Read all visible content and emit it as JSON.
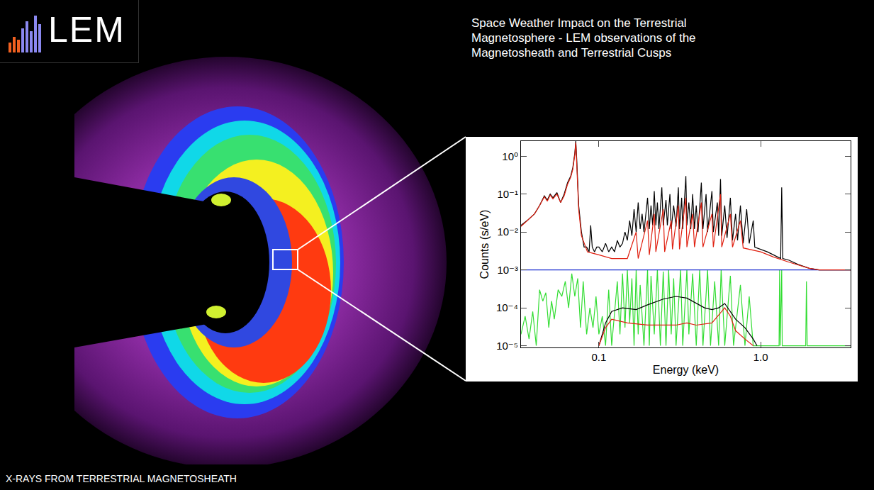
{
  "header": {
    "logo": "LEM",
    "title": "Space Weather Impact on the Terrestrial Magnetosphere - LEM observations of the Magnetosheath and Terrestrial Cusps"
  },
  "caption": "X-RAYS FROM TERRESTRIAL MAGNETOSHEATH",
  "chart_data": {
    "type": "line",
    "xlabel": "Energy (keV)",
    "ylabel": "Counts (s/eV)",
    "log": true,
    "grid": false,
    "xlim": [
      0.033,
      3.6
    ],
    "ylim": [
      9e-06,
      2.5
    ],
    "xticks": [
      0.1,
      {
        "value": 1,
        "label": "1.0"
      }
    ],
    "yticks": [
      {
        "value": 1,
        "label": "10⁰"
      },
      {
        "value": 0.1,
        "label": "10⁻¹"
      },
      {
        "value": 0.01,
        "label": "10⁻²"
      },
      {
        "value": 0.001,
        "label": "10⁻³"
      },
      {
        "value": 0.0001,
        "label": "10⁻⁴"
      },
      {
        "value": 1e-05,
        "label": "10⁻⁵"
      }
    ],
    "series": [
      {
        "color": "#33dd33",
        "x": [
          0.033,
          0.035,
          0.037,
          0.039,
          0.041,
          0.043,
          0.045,
          0.047,
          0.049,
          0.051,
          0.053,
          0.056,
          0.059,
          0.062,
          0.065,
          0.068,
          0.071,
          0.074,
          0.077,
          0.08,
          0.084,
          0.088,
          0.092,
          0.096,
          0.1,
          0.105,
          0.11,
          0.115,
          0.12,
          0.13,
          0.135,
          0.14,
          0.145,
          0.15,
          0.155,
          0.16,
          0.165,
          0.17,
          0.175,
          0.18,
          0.19,
          0.2,
          0.205,
          0.21,
          0.22,
          0.23,
          0.24,
          0.25,
          0.26,
          0.27,
          0.28,
          0.29,
          0.3,
          0.32,
          0.33,
          0.35,
          0.36,
          0.38,
          0.4,
          0.42,
          0.44,
          0.47,
          0.49,
          0.52,
          0.55,
          0.57,
          0.6,
          0.65,
          0.68,
          0.75,
          0.8,
          0.85,
          0.9,
          1.3,
          1.31,
          1.32,
          1.35,
          1.36,
          1.9,
          1.92,
          1.94,
          3.6
        ],
        "values": [
          2e-05,
          6e-05,
          1.5e-05,
          8e-05,
          1e-05,
          0.0003,
          0.00015,
          0.00025,
          3e-05,
          0.00015,
          5e-05,
          0.0003,
          0.0002,
          0.0005,
          0.0001,
          0.0008,
          0.0002,
          0.0006,
          3e-05,
          0.0005,
          2e-05,
          0.0001,
          3e-05,
          0.0002,
          2e-05,
          6e-05,
          1e-05,
          0.0003,
          1e-05,
          0.0005,
          2e-05,
          0.0008,
          3e-05,
          0.001,
          4e-05,
          0.0006,
          1e-05,
          0.001,
          2e-05,
          0.0004,
          1e-05,
          0.001,
          1e-05,
          0.0007,
          2e-05,
          0.001,
          1e-05,
          0.0009,
          1e-05,
          0.001,
          2e-05,
          0.0006,
          1e-05,
          0.001,
          1e-05,
          0.001,
          2e-05,
          0.0008,
          1e-05,
          0.001,
          1e-05,
          0.001,
          1e-05,
          0.0005,
          1e-05,
          0.001,
          1e-05,
          0.0007,
          1e-05,
          0.0004,
          1e-05,
          0.0002,
          1e-05,
          1e-05,
          0.001,
          1e-05,
          0.001,
          1e-05,
          1e-05,
          0.0005,
          1e-05,
          1e-05
        ]
      },
      {
        "color": "#1a2ccf",
        "x": [
          0.033,
          3.6
        ],
        "values": [
          0.001,
          0.001
        ]
      },
      {
        "color": "#000000",
        "x": [
          0.1,
          0.11,
          0.12,
          0.14,
          0.17,
          0.2,
          0.25,
          0.3,
          0.35,
          0.4,
          0.45,
          0.5,
          0.55,
          0.6,
          0.65,
          0.7,
          0.8,
          0.9,
          0.95
        ],
        "values": [
          1e-05,
          4e-05,
          8e-05,
          0.0001,
          9e-05,
          0.00012,
          0.00017,
          0.0002,
          0.00018,
          0.00013,
          0.0001,
          9e-05,
          0.0001,
          0.00013,
          8e-05,
          5e-05,
          3e-05,
          1.5e-05,
          1e-05
        ]
      },
      {
        "color": "#e02010",
        "x": [
          0.1,
          0.11,
          0.12,
          0.15,
          0.2,
          0.3,
          0.35,
          0.4,
          0.5,
          0.6,
          0.65,
          0.7,
          0.8,
          0.9
        ],
        "values": [
          1e-05,
          3e-05,
          5e-05,
          4e-05,
          3.5e-05,
          3.5e-05,
          4e-05,
          3.5e-05,
          4e-05,
          0.0001,
          6e-05,
          2.5e-05,
          1.5e-05,
          1e-05
        ]
      },
      {
        "color": "#000000",
        "x": [
          0.033,
          0.036,
          0.04,
          0.043,
          0.046,
          0.048,
          0.05,
          0.052,
          0.055,
          0.058,
          0.061,
          0.064,
          0.067,
          0.069,
          0.071,
          0.072,
          0.073,
          0.075,
          0.078,
          0.081,
          0.084,
          0.087,
          0.089,
          0.091,
          0.094,
          0.097,
          0.1,
          0.105,
          0.11,
          0.115,
          0.12,
          0.125,
          0.13,
          0.135,
          0.14,
          0.145,
          0.15,
          0.155,
          0.16,
          0.165,
          0.17,
          0.175,
          0.18,
          0.185,
          0.19,
          0.2,
          0.205,
          0.21,
          0.215,
          0.22,
          0.225,
          0.23,
          0.235,
          0.245,
          0.25,
          0.26,
          0.265,
          0.275,
          0.28,
          0.29,
          0.3,
          0.31,
          0.315,
          0.325,
          0.33,
          0.345,
          0.35,
          0.36,
          0.37,
          0.38,
          0.39,
          0.4,
          0.41,
          0.43,
          0.44,
          0.46,
          0.47,
          0.5,
          0.51,
          0.54,
          0.55,
          0.565,
          0.575,
          0.6,
          0.62,
          0.65,
          0.67,
          0.7,
          0.72,
          0.75,
          0.78,
          0.82,
          0.85,
          0.9,
          0.92,
          1.0,
          1.1,
          1.2,
          1.33,
          1.35,
          1.37,
          1.5,
          1.7,
          2.0,
          2.3,
          3.6
        ],
        "values": [
          0.015,
          0.02,
          0.03,
          0.05,
          0.09,
          0.07,
          0.1,
          0.08,
          0.11,
          0.06,
          0.1,
          0.2,
          0.3,
          0.5,
          1.2,
          2.5,
          0.8,
          0.05,
          0.01,
          0.004,
          0.004,
          0.003,
          0.015,
          0.004,
          0.003,
          0.004,
          0.004,
          0.003,
          0.005,
          0.003,
          0.004,
          0.003,
          0.006,
          0.004,
          0.005,
          0.01,
          0.006,
          0.02,
          0.008,
          0.04,
          0.01,
          0.06,
          0.012,
          0.03,
          0.01,
          0.08,
          0.012,
          0.05,
          0.015,
          0.12,
          0.015,
          0.06,
          0.012,
          0.15,
          0.015,
          0.07,
          0.015,
          0.1,
          0.012,
          0.05,
          0.014,
          0.15,
          0.012,
          0.08,
          0.012,
          0.3,
          0.015,
          0.06,
          0.012,
          0.1,
          0.012,
          0.05,
          0.01,
          0.2,
          0.012,
          0.1,
          0.01,
          0.12,
          0.01,
          0.06,
          0.008,
          0.25,
          0.008,
          0.05,
          0.007,
          0.08,
          0.006,
          0.03,
          0.006,
          0.05,
          0.005,
          0.04,
          0.005,
          0.02,
          0.004,
          0.0035,
          0.003,
          0.0025,
          0.002,
          0.15,
          0.002,
          0.0018,
          0.0014,
          0.0011,
          0.001,
          0.001
        ]
      },
      {
        "color": "#e02010",
        "x": [
          0.033,
          0.036,
          0.04,
          0.043,
          0.046,
          0.048,
          0.05,
          0.052,
          0.055,
          0.058,
          0.061,
          0.064,
          0.067,
          0.069,
          0.071,
          0.072,
          0.073,
          0.075,
          0.078,
          0.085,
          0.1,
          0.12,
          0.15,
          0.17,
          0.175,
          0.2,
          0.205,
          0.22,
          0.225,
          0.25,
          0.255,
          0.28,
          0.285,
          0.31,
          0.315,
          0.345,
          0.35,
          0.38,
          0.39,
          0.43,
          0.44,
          0.5,
          0.51,
          0.565,
          0.575,
          0.65,
          0.67,
          0.75,
          0.78,
          0.9,
          1.0,
          1.2,
          1.5,
          2.0,
          2.3,
          3.6
        ],
        "values": [
          0.014,
          0.02,
          0.03,
          0.05,
          0.085,
          0.065,
          0.095,
          0.075,
          0.1,
          0.06,
          0.09,
          0.18,
          0.28,
          0.45,
          1.1,
          2.3,
          0.7,
          0.04,
          0.008,
          0.003,
          0.0025,
          0.002,
          0.002,
          0.01,
          0.002,
          0.02,
          0.0025,
          0.03,
          0.003,
          0.04,
          0.003,
          0.02,
          0.0035,
          0.05,
          0.0035,
          0.08,
          0.004,
          0.03,
          0.004,
          0.06,
          0.004,
          0.03,
          0.004,
          0.1,
          0.004,
          0.03,
          0.004,
          0.02,
          0.0038,
          0.0033,
          0.003,
          0.0022,
          0.0016,
          0.0011,
          0.001,
          0.001
        ]
      }
    ]
  }
}
